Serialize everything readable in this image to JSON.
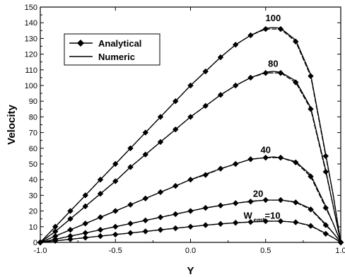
{
  "chart_data": {
    "type": "line",
    "xlabel": "Y",
    "ylabel": "Velocity",
    "xlim": [
      -1.0,
      1.0
    ],
    "ylim": [
      0,
      150
    ],
    "x_ticks": [
      "-1.0",
      "-0.5",
      "0.0",
      "0.5",
      "1.0"
    ],
    "x_tick_values": [
      -1.0,
      -0.5,
      0.0,
      0.5,
      1.0
    ],
    "y_ticks": [
      0,
      10,
      20,
      30,
      40,
      50,
      60,
      70,
      80,
      90,
      100,
      110,
      120,
      130,
      140,
      150
    ],
    "grid": false,
    "legend_position": "top-left",
    "legend": [
      {
        "label": "Analytical",
        "style": "line-with-diamond-markers"
      },
      {
        "label": "Numeric",
        "style": "solid-line"
      }
    ],
    "series": [
      {
        "name": "100",
        "label_pos": [
          0.55,
          141
        ],
        "analytical": {
          "x": [
            -1.0,
            -0.9,
            -0.8,
            -0.7,
            -0.6,
            -0.5,
            -0.4,
            -0.3,
            -0.2,
            -0.1,
            0.0,
            0.1,
            0.2,
            0.3,
            0.4,
            0.5,
            0.6,
            0.7,
            0.8,
            0.9,
            0.95,
            1.0
          ],
          "y": [
            0,
            10,
            20,
            30,
            40,
            50,
            60,
            70,
            80,
            90,
            100,
            109,
            118,
            126,
            132,
            136,
            136,
            128,
            106,
            55,
            30,
            0
          ]
        },
        "numeric": {
          "x": [
            -1.0,
            -0.9,
            -0.8,
            -0.7,
            -0.6,
            -0.5,
            -0.4,
            -0.3,
            -0.2,
            -0.1,
            0.0,
            0.1,
            0.2,
            0.3,
            0.4,
            0.5,
            0.55,
            0.6,
            0.7,
            0.8,
            0.9,
            0.95,
            1.0
          ],
          "y": [
            0,
            10,
            20,
            30,
            40,
            50,
            60,
            70,
            80,
            90,
            100,
            109,
            118,
            126,
            132,
            136.5,
            137,
            136.5,
            129,
            107,
            56,
            30,
            0
          ]
        }
      },
      {
        "name": "80",
        "label_pos": [
          0.55,
          112
        ],
        "analytical": {
          "x": [
            -1.0,
            -0.9,
            -0.8,
            -0.7,
            -0.6,
            -0.5,
            -0.4,
            -0.3,
            -0.2,
            -0.1,
            0.0,
            0.1,
            0.2,
            0.3,
            0.4,
            0.5,
            0.6,
            0.7,
            0.8,
            0.9,
            0.95,
            1.0
          ],
          "y": [
            0,
            7,
            15,
            23,
            31,
            39,
            48,
            56,
            64,
            72,
            80,
            87,
            94,
            100,
            105,
            108,
            108,
            102,
            85,
            45,
            23,
            0
          ]
        },
        "numeric": {
          "x": [
            -1.0,
            -0.9,
            -0.8,
            -0.7,
            -0.6,
            -0.5,
            -0.4,
            -0.3,
            -0.2,
            -0.1,
            0.0,
            0.1,
            0.2,
            0.3,
            0.4,
            0.5,
            0.55,
            0.6,
            0.7,
            0.8,
            0.9,
            0.95,
            1.0
          ],
          "y": [
            0,
            7,
            15,
            23,
            31,
            39,
            48,
            56,
            64,
            72,
            80,
            87,
            94,
            100,
            105,
            108.5,
            109,
            108.5,
            103,
            86,
            46,
            23,
            0
          ]
        }
      },
      {
        "name": "40",
        "label_pos": [
          0.5,
          57
        ],
        "analytical": {
          "x": [
            -1.0,
            -0.9,
            -0.8,
            -0.7,
            -0.6,
            -0.5,
            -0.4,
            -0.3,
            -0.2,
            -0.1,
            0.0,
            0.1,
            0.2,
            0.3,
            0.4,
            0.5,
            0.6,
            0.7,
            0.8,
            0.9,
            0.95,
            1.0
          ],
          "y": [
            0,
            4,
            8,
            12,
            16,
            20,
            24,
            28,
            32,
            36,
            40,
            43,
            47,
            50,
            53,
            54,
            54,
            51,
            42,
            22,
            12,
            0
          ]
        },
        "numeric": {
          "x": [
            -1.0,
            -0.9,
            -0.8,
            -0.7,
            -0.6,
            -0.5,
            -0.4,
            -0.3,
            -0.2,
            -0.1,
            0.0,
            0.1,
            0.2,
            0.3,
            0.4,
            0.5,
            0.55,
            0.6,
            0.7,
            0.8,
            0.9,
            0.95,
            1.0
          ],
          "y": [
            0,
            4,
            8,
            12,
            16,
            20,
            24,
            28,
            32,
            36,
            40,
            43.5,
            47,
            50,
            53,
            54,
            54.5,
            54,
            51.5,
            43,
            23,
            12,
            0
          ]
        }
      },
      {
        "name": "20",
        "label_pos": [
          0.45,
          29
        ],
        "analytical": {
          "x": [
            -1.0,
            -0.9,
            -0.8,
            -0.7,
            -0.6,
            -0.5,
            -0.4,
            -0.3,
            -0.2,
            -0.1,
            0.0,
            0.1,
            0.2,
            0.3,
            0.4,
            0.5,
            0.6,
            0.7,
            0.8,
            0.9,
            0.95,
            1.0
          ],
          "y": [
            0,
            2,
            4,
            6,
            8,
            10,
            12,
            14,
            16,
            18,
            20,
            22,
            23.5,
            25,
            26,
            27,
            27,
            25.5,
            21,
            11,
            6,
            0
          ]
        },
        "numeric": {
          "x": [
            -1.0,
            -0.9,
            -0.8,
            -0.7,
            -0.6,
            -0.5,
            -0.4,
            -0.3,
            -0.2,
            -0.1,
            0.0,
            0.1,
            0.2,
            0.3,
            0.4,
            0.5,
            0.6,
            0.7,
            0.8,
            0.9,
            0.95,
            1.0
          ],
          "y": [
            0,
            2,
            4,
            6,
            8,
            10,
            12,
            14,
            16,
            18,
            20,
            22,
            23.5,
            25,
            26.2,
            27,
            27,
            25.8,
            21.5,
            11.5,
            6,
            0
          ]
        }
      },
      {
        "name": "W_emt=10",
        "label_main": "W",
        "label_sub": "emt",
        "label_suffix": "=10",
        "label_pos": [
          0.4,
          15
        ],
        "analytical": {
          "x": [
            -1.0,
            -0.9,
            -0.8,
            -0.7,
            -0.6,
            -0.5,
            -0.4,
            -0.3,
            -0.2,
            -0.1,
            0.0,
            0.1,
            0.2,
            0.3,
            0.4,
            0.5,
            0.6,
            0.7,
            0.8,
            0.9,
            0.95,
            1.0
          ],
          "y": [
            0,
            1,
            2,
            3,
            4,
            5,
            6,
            7,
            8,
            9,
            10,
            11,
            11.8,
            12.5,
            13,
            13.5,
            13.5,
            12.8,
            10.5,
            5.5,
            3,
            0
          ]
        },
        "numeric": {
          "x": [
            -1.0,
            -0.9,
            -0.8,
            -0.7,
            -0.6,
            -0.5,
            -0.4,
            -0.3,
            -0.2,
            -0.1,
            0.0,
            0.1,
            0.2,
            0.3,
            0.4,
            0.5,
            0.6,
            0.7,
            0.8,
            0.9,
            0.95,
            1.0
          ],
          "y": [
            0,
            1,
            2,
            3,
            4,
            5,
            6,
            7,
            8,
            9,
            10,
            11,
            11.8,
            12.5,
            13,
            13.5,
            13.5,
            12.9,
            10.7,
            5.7,
            3,
            0
          ]
        }
      }
    ]
  }
}
